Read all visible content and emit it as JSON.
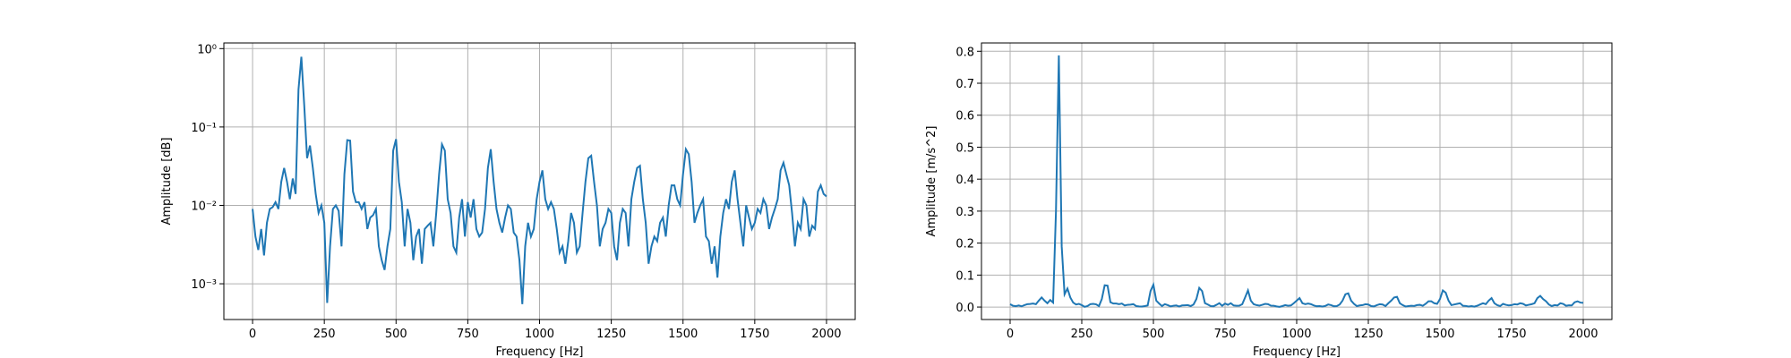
{
  "chart_data": [
    {
      "type": "line",
      "yscale": "log",
      "grid": true,
      "color": "#1f77b4",
      "xlabel": "Frequency [Hz]",
      "ylabel": "Amplitude [dB]",
      "xlim": [
        -100,
        2100
      ],
      "ylim": [
        0.00035,
        1.18
      ],
      "xticks": [
        0,
        250,
        500,
        750,
        1000,
        1250,
        1500,
        1750,
        2000
      ],
      "yticks": [
        {
          "value": 0.001,
          "label": "10⁻³"
        },
        {
          "value": 0.01,
          "label": "10⁻²"
        },
        {
          "value": 0.1,
          "label": "10⁻¹"
        },
        {
          "value": 1,
          "label": "10⁰"
        }
      ],
      "x": [
        0,
        10,
        20,
        30,
        40,
        50,
        60,
        70,
        80,
        90,
        100,
        110,
        120,
        130,
        140,
        150,
        160,
        170,
        180,
        190,
        200,
        210,
        220,
        230,
        240,
        250,
        260,
        270,
        280,
        290,
        300,
        310,
        320,
        330,
        340,
        350,
        360,
        370,
        380,
        390,
        400,
        410,
        420,
        430,
        440,
        450,
        460,
        470,
        480,
        490,
        500,
        510,
        520,
        530,
        540,
        550,
        560,
        570,
        580,
        590,
        600,
        610,
        620,
        630,
        640,
        650,
        660,
        670,
        680,
        690,
        700,
        710,
        720,
        730,
        740,
        750,
        760,
        770,
        780,
        790,
        800,
        810,
        820,
        830,
        840,
        850,
        860,
        870,
        880,
        890,
        900,
        910,
        920,
        930,
        940,
        950,
        960,
        970,
        980,
        990,
        1000,
        1010,
        1020,
        1030,
        1040,
        1050,
        1060,
        1070,
        1080,
        1090,
        1100,
        1110,
        1120,
        1130,
        1140,
        1150,
        1160,
        1170,
        1180,
        1190,
        1200,
        1210,
        1220,
        1230,
        1240,
        1250,
        1260,
        1270,
        1280,
        1290,
        1300,
        1310,
        1320,
        1330,
        1340,
        1350,
        1360,
        1370,
        1380,
        1390,
        1400,
        1410,
        1420,
        1430,
        1440,
        1450,
        1460,
        1470,
        1480,
        1490,
        1500,
        1510,
        1520,
        1530,
        1540,
        1550,
        1560,
        1570,
        1580,
        1590,
        1600,
        1610,
        1620,
        1630,
        1640,
        1650,
        1660,
        1670,
        1680,
        1690,
        1700,
        1710,
        1720,
        1730,
        1740,
        1750,
        1760,
        1770,
        1780,
        1790,
        1800,
        1810,
        1820,
        1830,
        1840,
        1850,
        1860,
        1870,
        1880,
        1890,
        1900,
        1910,
        1920,
        1930,
        1940,
        1950,
        1960,
        1970,
        1980,
        1990,
        2000
      ],
      "values": [
        0.009,
        0.004,
        0.0027,
        0.005,
        0.0023,
        0.006,
        0.009,
        0.0095,
        0.011,
        0.009,
        0.02,
        0.03,
        0.02,
        0.012,
        0.022,
        0.014,
        0.3,
        0.787,
        0.19,
        0.04,
        0.058,
        0.03,
        0.014,
        0.008,
        0.01,
        0.006,
        0.00057,
        0.003,
        0.009,
        0.01,
        0.0085,
        0.003,
        0.025,
        0.068,
        0.067,
        0.015,
        0.011,
        0.011,
        0.009,
        0.011,
        0.005,
        0.007,
        0.0075,
        0.009,
        0.003,
        0.002,
        0.0015,
        0.003,
        0.005,
        0.05,
        0.07,
        0.02,
        0.011,
        0.003,
        0.009,
        0.006,
        0.002,
        0.004,
        0.005,
        0.0018,
        0.005,
        0.0055,
        0.006,
        0.003,
        0.008,
        0.025,
        0.06,
        0.05,
        0.012,
        0.008,
        0.003,
        0.0025,
        0.007,
        0.012,
        0.004,
        0.011,
        0.007,
        0.012,
        0.005,
        0.004,
        0.0045,
        0.009,
        0.03,
        0.052,
        0.02,
        0.009,
        0.006,
        0.0045,
        0.007,
        0.01,
        0.009,
        0.0045,
        0.004,
        0.002,
        0.00055,
        0.003,
        0.006,
        0.004,
        0.005,
        0.012,
        0.02,
        0.028,
        0.012,
        0.009,
        0.011,
        0.009,
        0.005,
        0.0025,
        0.003,
        0.0018,
        0.0035,
        0.008,
        0.006,
        0.0025,
        0.003,
        0.008,
        0.02,
        0.04,
        0.043,
        0.02,
        0.01,
        0.003,
        0.005,
        0.006,
        0.009,
        0.008,
        0.003,
        0.002,
        0.006,
        0.009,
        0.008,
        0.003,
        0.012,
        0.02,
        0.03,
        0.032,
        0.012,
        0.006,
        0.0018,
        0.003,
        0.004,
        0.0035,
        0.006,
        0.007,
        0.004,
        0.01,
        0.018,
        0.018,
        0.012,
        0.01,
        0.025,
        0.052,
        0.045,
        0.02,
        0.006,
        0.008,
        0.01,
        0.012,
        0.004,
        0.0035,
        0.0018,
        0.003,
        0.0012,
        0.004,
        0.008,
        0.012,
        0.009,
        0.02,
        0.028,
        0.012,
        0.006,
        0.003,
        0.01,
        0.007,
        0.005,
        0.006,
        0.009,
        0.008,
        0.012,
        0.01,
        0.005,
        0.007,
        0.009,
        0.012,
        0.028,
        0.035,
        0.025,
        0.018,
        0.008,
        0.003,
        0.006,
        0.005,
        0.012,
        0.01,
        0.004,
        0.0055,
        0.005,
        0.015,
        0.018,
        0.014,
        0.013
      ]
    },
    {
      "type": "line",
      "grid": true,
      "color": "#1f77b4",
      "xlabel": "Frequency [Hz]",
      "ylabel": "Amplitude [m/s^2]",
      "xlim": [
        -100,
        2100
      ],
      "ylim": [
        -0.039,
        0.826
      ],
      "xticks": [
        0,
        250,
        500,
        750,
        1000,
        1250,
        1500,
        1750,
        2000
      ],
      "yticks": [
        {
          "value": 0,
          "label": "0.0"
        },
        0.1,
        0.2,
        0.3,
        0.4,
        0.5,
        0.6,
        0.7,
        0.8
      ],
      "x": [
        0,
        10,
        20,
        30,
        40,
        50,
        60,
        70,
        80,
        90,
        100,
        110,
        120,
        130,
        140,
        150,
        160,
        170,
        180,
        190,
        200,
        210,
        220,
        230,
        240,
        250,
        260,
        270,
        280,
        290,
        300,
        310,
        320,
        330,
        340,
        350,
        360,
        370,
        380,
        390,
        400,
        410,
        420,
        430,
        440,
        450,
        460,
        470,
        480,
        490,
        500,
        510,
        520,
        530,
        540,
        550,
        560,
        570,
        580,
        590,
        600,
        610,
        620,
        630,
        640,
        650,
        660,
        670,
        680,
        690,
        700,
        710,
        720,
        730,
        740,
        750,
        760,
        770,
        780,
        790,
        800,
        810,
        820,
        830,
        840,
        850,
        860,
        870,
        880,
        890,
        900,
        910,
        920,
        930,
        940,
        950,
        960,
        970,
        980,
        990,
        1000,
        1010,
        1020,
        1030,
        1040,
        1050,
        1060,
        1070,
        1080,
        1090,
        1100,
        1110,
        1120,
        1130,
        1140,
        1150,
        1160,
        1170,
        1180,
        1190,
        1200,
        1210,
        1220,
        1230,
        1240,
        1250,
        1260,
        1270,
        1280,
        1290,
        1300,
        1310,
        1320,
        1330,
        1340,
        1350,
        1360,
        1370,
        1380,
        1390,
        1400,
        1410,
        1420,
        1430,
        1440,
        1450,
        1460,
        1470,
        1480,
        1490,
        1500,
        1510,
        1520,
        1530,
        1540,
        1550,
        1560,
        1570,
        1580,
        1590,
        1600,
        1610,
        1620,
        1630,
        1640,
        1650,
        1660,
        1670,
        1680,
        1690,
        1700,
        1710,
        1720,
        1730,
        1740,
        1750,
        1760,
        1770,
        1780,
        1790,
        1800,
        1810,
        1820,
        1830,
        1840,
        1850,
        1860,
        1870,
        1880,
        1890,
        1900,
        1910,
        1920,
        1930,
        1940,
        1950,
        1960,
        1970,
        1980,
        1990,
        2000
      ],
      "values": [
        0.009,
        0.004,
        0.0027,
        0.005,
        0.0023,
        0.006,
        0.009,
        0.0095,
        0.011,
        0.009,
        0.02,
        0.03,
        0.02,
        0.012,
        0.022,
        0.014,
        0.3,
        0.787,
        0.19,
        0.04,
        0.058,
        0.03,
        0.014,
        0.008,
        0.01,
        0.006,
        0.00057,
        0.003,
        0.009,
        0.01,
        0.0085,
        0.003,
        0.025,
        0.068,
        0.067,
        0.015,
        0.011,
        0.011,
        0.009,
        0.011,
        0.005,
        0.007,
        0.0075,
        0.009,
        0.003,
        0.002,
        0.0015,
        0.003,
        0.005,
        0.05,
        0.07,
        0.02,
        0.011,
        0.003,
        0.009,
        0.006,
        0.002,
        0.004,
        0.005,
        0.0018,
        0.005,
        0.0055,
        0.006,
        0.003,
        0.008,
        0.025,
        0.06,
        0.05,
        0.012,
        0.008,
        0.003,
        0.0025,
        0.007,
        0.012,
        0.004,
        0.011,
        0.007,
        0.012,
        0.005,
        0.004,
        0.0045,
        0.009,
        0.03,
        0.052,
        0.02,
        0.009,
        0.006,
        0.0045,
        0.007,
        0.01,
        0.009,
        0.0045,
        0.004,
        0.002,
        0.00055,
        0.003,
        0.006,
        0.004,
        0.005,
        0.012,
        0.02,
        0.028,
        0.012,
        0.009,
        0.011,
        0.009,
        0.005,
        0.0025,
        0.003,
        0.0018,
        0.0035,
        0.008,
        0.006,
        0.0025,
        0.003,
        0.008,
        0.02,
        0.04,
        0.043,
        0.02,
        0.01,
        0.003,
        0.005,
        0.006,
        0.009,
        0.008,
        0.003,
        0.002,
        0.006,
        0.009,
        0.008,
        0.003,
        0.012,
        0.02,
        0.03,
        0.032,
        0.012,
        0.006,
        0.0018,
        0.003,
        0.004,
        0.0035,
        0.006,
        0.007,
        0.004,
        0.01,
        0.018,
        0.018,
        0.012,
        0.01,
        0.025,
        0.052,
        0.045,
        0.02,
        0.006,
        0.008,
        0.01,
        0.012,
        0.004,
        0.0035,
        0.0018,
        0.003,
        0.0012,
        0.004,
        0.008,
        0.012,
        0.009,
        0.02,
        0.028,
        0.012,
        0.006,
        0.003,
        0.01,
        0.007,
        0.005,
        0.006,
        0.009,
        0.008,
        0.012,
        0.01,
        0.005,
        0.007,
        0.009,
        0.012,
        0.028,
        0.035,
        0.025,
        0.018,
        0.008,
        0.003,
        0.006,
        0.005,
        0.012,
        0.01,
        0.004,
        0.0055,
        0.005,
        0.015,
        0.018,
        0.014,
        0.013
      ]
    }
  ]
}
